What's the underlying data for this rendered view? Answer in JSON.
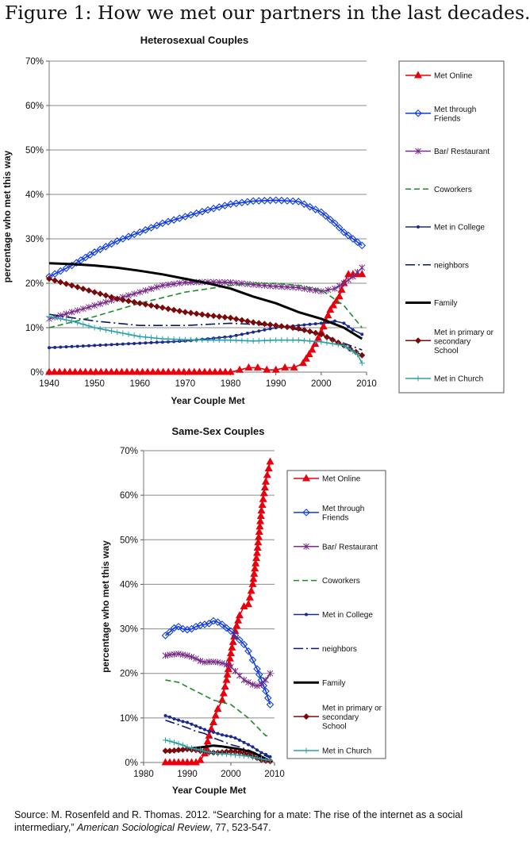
{
  "figure_title": "Figure 1: How we met our partners in the last decades.",
  "source": {
    "prefix": "Source: M. Rosenfeld and R. Thomas. 2012. “Searching for a mate: The rise of the internet as a social intermediary,”",
    "journal": "American Sociological Review",
    "suffix": ", 77, 523-547."
  },
  "colors": {
    "met_online": "#e8000c",
    "friends": "#0f3ce0",
    "bar": "#7a2a8a",
    "coworkers": "#1f8a2a",
    "college": "#1a2a8a",
    "neighbors": "#0a1a6a",
    "family": "#000000",
    "school": "#7a0a0a",
    "church": "#2aa0a8"
  },
  "chart_data": [
    {
      "type": "line",
      "title": "Heterosexual Couples",
      "xlabel": "Year Couple Met",
      "ylabel": "percentage who met this way",
      "xlim": [
        1940,
        2010
      ],
      "ylim": [
        0,
        70
      ],
      "x_ticks": [
        1940,
        1950,
        1960,
        1970,
        1980,
        1990,
        2000,
        2010
      ],
      "y_ticks": [
        "0%",
        "10%",
        "20%",
        "30%",
        "40%",
        "50%",
        "60%",
        "70%"
      ],
      "y_tick_values": [
        0,
        10,
        20,
        30,
        40,
        50,
        60,
        70
      ],
      "grid": "horizontal",
      "legend_position": "right",
      "series": [
        {
          "name": "Met Online",
          "key": "met_online",
          "marker": "triangle",
          "dash": "solid",
          "x": [
            1940,
            1980,
            1982,
            1984,
            1986,
            1988,
            1990,
            1992,
            1994,
            1996,
            1998,
            2000,
            2002,
            2004,
            2005,
            2006,
            2007,
            2008,
            2009
          ],
          "y": [
            0,
            0,
            0.5,
            1,
            1,
            0.5,
            0.5,
            1,
            1,
            2,
            5,
            9,
            14,
            17,
            20,
            22,
            22,
            22,
            22
          ]
        },
        {
          "name": "Met through Friends",
          "key": "friends",
          "marker": "diamond",
          "dash": "solid",
          "x": [
            1940,
            1945,
            1950,
            1955,
            1960,
            1965,
            1970,
            1975,
            1980,
            1985,
            1990,
            1995,
            2000,
            2003,
            2005,
            2007,
            2009
          ],
          "y": [
            21.5,
            24,
            27,
            29.5,
            31.5,
            33.5,
            35,
            36.5,
            37.8,
            38.5,
            38.7,
            38.4,
            36,
            33.5,
            31.5,
            30,
            28.5
          ]
        },
        {
          "name": "Bar/ Restaurant",
          "key": "bar",
          "marker": "star",
          "dash": "solid",
          "x": [
            1940,
            1945,
            1950,
            1955,
            1960,
            1965,
            1970,
            1975,
            1980,
            1985,
            1990,
            1995,
            2000,
            2003,
            2005,
            2007,
            2009
          ],
          "y": [
            12,
            13.5,
            15,
            16.5,
            18,
            19.5,
            20.2,
            20.3,
            20.2,
            19.7,
            19.3,
            19.0,
            18.2,
            18.8,
            20,
            21.5,
            23.5
          ]
        },
        {
          "name": "Coworkers",
          "key": "coworkers",
          "marker": "none",
          "dash": "dashed",
          "x": [
            1940,
            1950,
            1960,
            1970,
            1980,
            1985,
            1990,
            1995,
            2000,
            2005,
            2009
          ],
          "y": [
            10,
            12.5,
            15.5,
            18,
            19.5,
            20,
            20,
            19.5,
            18.5,
            15,
            10
          ]
        },
        {
          "name": "Met in College",
          "key": "college",
          "marker": "dot",
          "dash": "solid",
          "x": [
            1940,
            1950,
            1960,
            1970,
            1980,
            1985,
            1990,
            1995,
            2000,
            2003,
            2005,
            2007,
            2009
          ],
          "y": [
            5.5,
            6,
            6.5,
            7,
            8,
            9,
            10,
            10.5,
            11,
            11.5,
            11,
            9.5,
            8.5
          ]
        },
        {
          "name": "neighbors",
          "key": "neighbors",
          "marker": "none",
          "dash": "dashdot",
          "x": [
            1940,
            1950,
            1960,
            1970,
            1980,
            1990,
            2000,
            2005,
            2009
          ],
          "y": [
            13,
            11.5,
            10.5,
            10.5,
            11,
            10.5,
            8.5,
            6.5,
            5
          ]
        },
        {
          "name": "Family",
          "key": "family",
          "marker": "none",
          "dash": "solid",
          "bold": true,
          "x": [
            1940,
            1945,
            1950,
            1955,
            1960,
            1965,
            1970,
            1975,
            1980,
            1985,
            1990,
            1995,
            2000,
            2005,
            2009
          ],
          "y": [
            24.5,
            24.3,
            24,
            23.5,
            22.8,
            22,
            21,
            20,
            18.8,
            17,
            15.5,
            13.5,
            12,
            10,
            7.5
          ]
        },
        {
          "name": "Met in primary or secondary School",
          "key": "school",
          "marker": "diamond-filled",
          "dash": "solid",
          "x": [
            1940,
            1945,
            1950,
            1955,
            1960,
            1965,
            1970,
            1975,
            1980,
            1985,
            1990,
            1995,
            2000,
            2005,
            2009
          ],
          "y": [
            21,
            19.5,
            18,
            16.5,
            15.5,
            14.5,
            13.5,
            12.8,
            12.2,
            11.2,
            10.5,
            9.8,
            8.5,
            6,
            3.8
          ]
        },
        {
          "name": "Met in Church",
          "key": "church",
          "marker": "plus",
          "dash": "solid",
          "x": [
            1940,
            1945,
            1950,
            1955,
            1960,
            1965,
            1970,
            1975,
            1980,
            1985,
            1990,
            1995,
            2000,
            2005,
            2008,
            2009
          ],
          "y": [
            12.5,
            11.5,
            10,
            9,
            8,
            7.5,
            7.3,
            7.2,
            7.2,
            7,
            7.2,
            7.2,
            6.8,
            6,
            4,
            2
          ]
        }
      ]
    },
    {
      "type": "line",
      "title": "Same-Sex Couples",
      "xlabel": "Year Couple Met",
      "ylabel": "percentage who met this way",
      "xlim": [
        1980,
        2010
      ],
      "ylim": [
        0,
        70
      ],
      "x_ticks": [
        1980,
        1990,
        2000,
        2010
      ],
      "y_ticks": [
        "0%",
        "10%",
        "20%",
        "30%",
        "40%",
        "50%",
        "60%",
        "70%"
      ],
      "y_tick_values": [
        0,
        10,
        20,
        30,
        40,
        50,
        60,
        70
      ],
      "grid": "horizontal",
      "legend_position": "right",
      "series": [
        {
          "name": "Met Online",
          "key": "met_online",
          "marker": "triangle",
          "dash": "solid",
          "x": [
            1985,
            1986,
            1987,
            1988,
            1989,
            1990,
            1991,
            1992,
            1993,
            1994,
            1995,
            1996,
            1997,
            1998,
            1999,
            2000,
            2001,
            2002,
            2003,
            2004,
            2005,
            2006,
            2007,
            2008,
            2009
          ],
          "y": [
            0,
            0,
            0,
            0,
            0,
            0,
            0,
            0,
            0.5,
            2,
            6,
            9,
            12,
            14,
            18.5,
            24.5,
            29.5,
            33,
            35,
            35.5,
            40,
            47,
            56.5,
            63,
            67.5
          ]
        },
        {
          "name": "Met through Friends",
          "key": "friends",
          "marker": "diamond",
          "dash": "solid",
          "x": [
            1985,
            1986,
            1987,
            1988,
            1989,
            1990,
            1991,
            1992,
            1993,
            1994,
            1995,
            1996,
            1997,
            1998,
            1999,
            2000,
            2001,
            2002,
            2003,
            2004,
            2005,
            2006,
            2007,
            2008,
            2009
          ],
          "y": [
            28.5,
            29.3,
            30.2,
            30.5,
            30.0,
            29.8,
            30.0,
            30.5,
            30.8,
            31.0,
            31.2,
            31.8,
            31.5,
            31.0,
            30.2,
            29.5,
            28.5,
            27.5,
            26.5,
            25.0,
            23.0,
            21.0,
            18.5,
            16.0,
            13.0
          ]
        },
        {
          "name": "Bar/ Restaurant",
          "key": "bar",
          "marker": "star",
          "dash": "solid",
          "x": [
            1985,
            1986,
            1987,
            1988,
            1989,
            1990,
            1991,
            1992,
            1993,
            1994,
            1995,
            1996,
            1997,
            1998,
            1999,
            2000,
            2001,
            2002,
            2003,
            2004,
            2005,
            2006,
            2007,
            2008,
            2009
          ],
          "y": [
            24.0,
            24.2,
            24.3,
            24.4,
            24.2,
            24.0,
            23.7,
            23.3,
            22.8,
            22.5,
            22.6,
            22.6,
            22.5,
            22.3,
            22.0,
            21.5,
            20.5,
            19.5,
            18.5,
            18.0,
            17.5,
            17.2,
            17.5,
            18.5,
            20.0
          ]
        },
        {
          "name": "Coworkers",
          "key": "coworkers",
          "marker": "none",
          "dash": "dashed",
          "x": [
            1985,
            1988,
            1990,
            1992,
            1994,
            1996,
            1998,
            2000,
            2002,
            2004,
            2006,
            2008,
            2009
          ],
          "y": [
            18.5,
            18,
            17,
            16,
            15,
            14,
            13.5,
            13,
            11.5,
            10,
            8,
            6,
            6
          ]
        },
        {
          "name": "Met in College",
          "key": "college",
          "marker": "dot",
          "dash": "solid",
          "x": [
            1985,
            1986,
            1987,
            1988,
            1989,
            1990,
            1991,
            1992,
            1993,
            1994,
            1995,
            1996,
            1997,
            1998,
            1999,
            2000,
            2001,
            2002,
            2003,
            2004,
            2005,
            2006,
            2007,
            2008,
            2009
          ],
          "y": [
            10.5,
            10.2,
            9.8,
            9.5,
            9.2,
            9.0,
            8.6,
            8.2,
            7.8,
            7.4,
            7.0,
            6.8,
            6.5,
            6.2,
            6.0,
            5.8,
            5.5,
            5.0,
            4.5,
            4.0,
            3.5,
            2.8,
            2.2,
            1.8,
            1.3
          ]
        },
        {
          "name": "neighbors",
          "key": "neighbors",
          "marker": "none",
          "dash": "dashdot",
          "x": [
            1985,
            1988,
            1990,
            1992,
            1994,
            1996,
            1998,
            2000,
            2002,
            2004,
            2006,
            2008,
            2009
          ],
          "y": [
            9.5,
            8.5,
            7.8,
            7,
            6.5,
            5.5,
            4.8,
            4,
            3.5,
            2.8,
            2,
            1.5,
            1
          ]
        },
        {
          "name": "Family",
          "key": "family",
          "marker": "none",
          "dash": "solid",
          "bold": true,
          "x": [
            1985,
            1988,
            1990,
            1992,
            1994,
            1996,
            1998,
            2000,
            2002,
            2004,
            2006,
            2008,
            2009
          ],
          "y": [
            2.5,
            2.7,
            3,
            3.3,
            3.5,
            3.8,
            3.6,
            3.3,
            3,
            2.5,
            1.8,
            0.8,
            0.3
          ]
        },
        {
          "name": "Met in primary or secondary School",
          "key": "school",
          "marker": "diamond-filled",
          "dash": "solid",
          "x": [
            1985,
            1986,
            1987,
            1988,
            1989,
            1990,
            1991,
            1992,
            1993,
            1994,
            1995,
            1996,
            1997,
            1998,
            1999,
            2000,
            2001,
            2002,
            2003,
            2004,
            2005,
            2006,
            2007,
            2008,
            2009
          ],
          "y": [
            2.6,
            2.6,
            2.7,
            2.8,
            2.9,
            3.0,
            2.9,
            2.8,
            2.6,
            2.5,
            2.3,
            2.2,
            2.2,
            2.3,
            2.4,
            2.5,
            2.4,
            2.3,
            2.1,
            1.8,
            1.4,
            1.0,
            0.6,
            0.4,
            0.3
          ]
        },
        {
          "name": "Met in Church",
          "key": "church",
          "marker": "plus",
          "dash": "solid",
          "x": [
            1985,
            1986,
            1987,
            1988,
            1989,
            1990,
            1991,
            1992,
            1993,
            1994,
            1995,
            1996,
            1997,
            1998,
            1999,
            2000,
            2001,
            2002,
            2003,
            2004,
            2005,
            2006,
            2007,
            2008,
            2009
          ],
          "y": [
            5.0,
            4.8,
            4.5,
            4.2,
            3.9,
            3.5,
            3.2,
            3.0,
            2.8,
            2.5,
            2.3,
            2.2,
            2.0,
            2.0,
            1.9,
            1.8,
            1.7,
            1.6,
            1.5,
            1.4,
            1.2,
            1.0,
            0.8,
            0.6,
            0.5
          ]
        }
      ]
    }
  ]
}
